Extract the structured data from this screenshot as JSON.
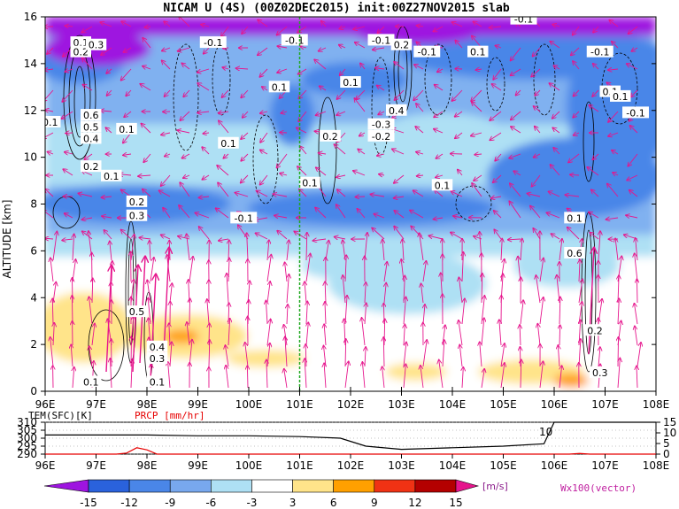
{
  "title": "NICAM U (4S) (00Z02DEC2015) init:00Z27NOV2015 slab",
  "chart_data": [
    {
      "type": "heatmap",
      "name": "cross-section",
      "ylabel": "ALTITUDE [km]",
      "xlim": [
        96,
        108
      ],
      "ylim": [
        0,
        16
      ],
      "x_ticks": [
        "96E",
        "97E",
        "98E",
        "99E",
        "100E",
        "101E",
        "102E",
        "103E",
        "104E",
        "105E",
        "106E",
        "107E",
        "108E"
      ],
      "y_ticks": [
        "0",
        "2",
        "4",
        "6",
        "8",
        "10",
        "12",
        "14",
        "16"
      ],
      "marker_line_x": 101,
      "vector_label": "Wx100(vector)",
      "contour_labels": [
        {
          "text": "0.1",
          "x": 96.7,
          "y": 14.9
        },
        {
          "text": "0.2",
          "x": 96.7,
          "y": 14.5
        },
        {
          "text": "0.3",
          "x": 97.0,
          "y": 14.8
        },
        {
          "text": "-0.1",
          "x": 99.3,
          "y": 14.9
        },
        {
          "text": "-0.1",
          "x": 100.9,
          "y": 15.0
        },
        {
          "text": "-0.1",
          "x": 102.6,
          "y": 15.0
        },
        {
          "text": "0.2",
          "x": 103.0,
          "y": 14.8
        },
        {
          "text": "-0.1",
          "x": 103.5,
          "y": 14.5
        },
        {
          "text": "0.1",
          "x": 104.5,
          "y": 14.5
        },
        {
          "text": "-0.1",
          "x": 105.4,
          "y": 15.9
        },
        {
          "text": "-0.1",
          "x": 106.9,
          "y": 14.5
        },
        {
          "text": "0.1",
          "x": 100.6,
          "y": 13.0
        },
        {
          "text": "0.1",
          "x": 102.0,
          "y": 13.2
        },
        {
          "text": "0.1",
          "x": 107.1,
          "y": 12.8
        },
        {
          "text": "0.1",
          "x": 107.3,
          "y": 12.6
        },
        {
          "text": "-0.1",
          "x": 107.6,
          "y": 11.9
        },
        {
          "text": "0.6",
          "x": 96.9,
          "y": 11.8
        },
        {
          "text": "0.5",
          "x": 96.9,
          "y": 11.3
        },
        {
          "text": "0.4",
          "x": 96.9,
          "y": 10.8
        },
        {
          "text": "0.2",
          "x": 96.9,
          "y": 9.6
        },
        {
          "text": "0.1",
          "x": 97.6,
          "y": 11.2
        },
        {
          "text": "0.1",
          "x": 99.6,
          "y": 10.6
        },
        {
          "text": "0.2",
          "x": 101.6,
          "y": 10.9
        },
        {
          "text": "-0.3",
          "x": 102.6,
          "y": 11.4
        },
        {
          "text": "-0.2",
          "x": 102.6,
          "y": 10.9
        },
        {
          "text": "0.4",
          "x": 102.9,
          "y": 12.0
        },
        {
          "text": "0.1",
          "x": 96.1,
          "y": 11.5
        },
        {
          "text": "0.1",
          "x": 97.3,
          "y": 9.2
        },
        {
          "text": "0.1",
          "x": 101.2,
          "y": 8.9
        },
        {
          "text": "0.1",
          "x": 103.8,
          "y": 8.8
        },
        {
          "text": "0.2",
          "x": 97.8,
          "y": 8.1
        },
        {
          "text": "0.3",
          "x": 97.8,
          "y": 7.5
        },
        {
          "text": "-0.1",
          "x": 99.9,
          "y": 7.4
        },
        {
          "text": "0.1",
          "x": 106.4,
          "y": 7.4
        },
        {
          "text": "0.6",
          "x": 106.4,
          "y": 5.9
        },
        {
          "text": "0.5",
          "x": 97.8,
          "y": 3.4
        },
        {
          "text": "0.4",
          "x": 98.2,
          "y": 1.9
        },
        {
          "text": "0.3",
          "x": 98.2,
          "y": 1.4
        },
        {
          "text": "0.1",
          "x": 98.2,
          "y": 0.4
        },
        {
          "text": "0.1",
          "x": 96.9,
          "y": 0.4
        },
        {
          "text": "0.2",
          "x": 106.8,
          "y": 2.6
        },
        {
          "text": "0.3",
          "x": 106.9,
          "y": 0.8
        }
      ]
    },
    {
      "type": "line",
      "name": "surface",
      "series": [
        {
          "name": "TEM(SFC)[K]",
          "color": "#000000",
          "x": [
            96,
            97,
            98,
            99,
            100,
            101,
            101.8,
            102.3,
            103,
            104,
            105,
            105.8,
            106,
            107,
            108
          ],
          "values": [
            302,
            302,
            302,
            301.5,
            301.5,
            301,
            300,
            295,
            293,
            294,
            295,
            296.5,
            310,
            310,
            310
          ]
        },
        {
          "name": "PRCP [mm/hr]",
          "color": "#e60000",
          "x": [
            96,
            97.4,
            97.6,
            97.8,
            98.0,
            98.2,
            99,
            103,
            104,
            105,
            106,
            106.3,
            106.5,
            106.7,
            108
          ],
          "values": [
            0,
            0,
            0.5,
            3,
            2,
            0,
            0,
            0,
            0,
            0,
            0,
            0,
            0.3,
            0,
            0
          ]
        }
      ],
      "left_ticks": [
        "290",
        "295",
        "300",
        "305",
        "310"
      ],
      "left_ylim": [
        290,
        310
      ],
      "right_ticks": [
        "0",
        "5",
        "10",
        "15"
      ],
      "right_ylim": [
        0,
        15
      ],
      "x_ticks": [
        "96E",
        "97E",
        "98E",
        "99E",
        "100E",
        "101E",
        "102E",
        "103E",
        "104E",
        "105E",
        "106E",
        "107E",
        "108E"
      ],
      "annotation": "10"
    }
  ],
  "colorbar": {
    "levels": [
      "-15",
      "-12",
      "-9",
      "-6",
      "-3",
      "3",
      "6",
      "9",
      "12",
      "15"
    ],
    "unit": "[m/s]",
    "colors": [
      "#9e14e0",
      "#2a62dc",
      "#4a86e8",
      "#78a8ee",
      "#aee0f4",
      "#ffffff",
      "#ffe48a",
      "#ffa000",
      "#f03214",
      "#b40000",
      "#e6148c"
    ]
  }
}
